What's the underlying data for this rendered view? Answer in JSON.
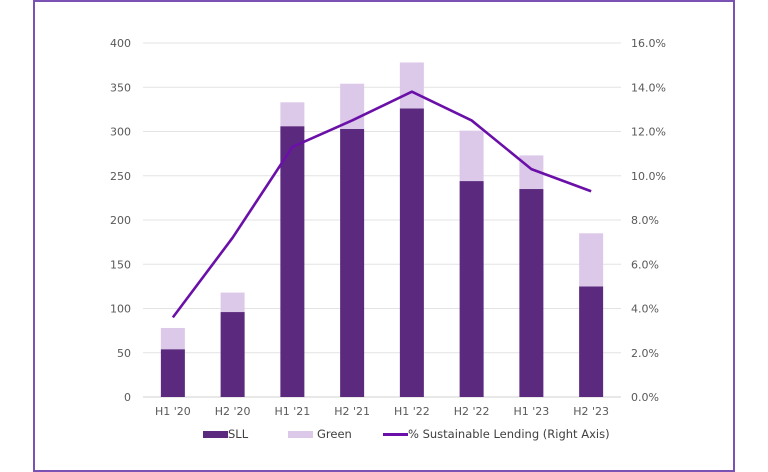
{
  "chart_data": {
    "type": "bar",
    "stacked": true,
    "categories": [
      "H1 '20",
      "H2 '20",
      "H1 '21",
      "H2 '21",
      "H1 '22",
      "H2 '22",
      "H1 '23",
      "H2 '23"
    ],
    "series": [
      {
        "name": "SLL",
        "kind": "bar",
        "axis": "left",
        "color": "#5b2a7e",
        "values": [
          54,
          96,
          306,
          303,
          326,
          244,
          235,
          125
        ]
      },
      {
        "name": "Green",
        "kind": "bar",
        "axis": "left",
        "color": "#dcc9ea",
        "values": [
          24,
          22,
          27,
          51,
          52,
          57,
          38,
          60
        ]
      },
      {
        "name": "% Sustainable Lending (Right Axis)",
        "kind": "line",
        "axis": "right",
        "color": "#6a10a8",
        "values": [
          3.6,
          7.2,
          11.3,
          12.5,
          13.8,
          12.5,
          10.3,
          9.3
        ]
      }
    ],
    "ylim": [
      0,
      400
    ],
    "y_ticks": [
      "0",
      "50",
      "100",
      "150",
      "200",
      "250",
      "300",
      "350",
      "400"
    ],
    "y2lim": [
      0,
      16
    ],
    "y2_ticks": [
      "0.0%",
      "2.0%",
      "4.0%",
      "6.0%",
      "8.0%",
      "10.0%",
      "12.0%",
      "14.0%",
      "16.0%"
    ],
    "title": "",
    "xlabel": "",
    "ylabel": "",
    "grid": true,
    "legend_position": "bottom"
  },
  "legend": {
    "sll": "SLL",
    "green": "Green",
    "line": "% Sustainable Lending (Right Axis)"
  }
}
